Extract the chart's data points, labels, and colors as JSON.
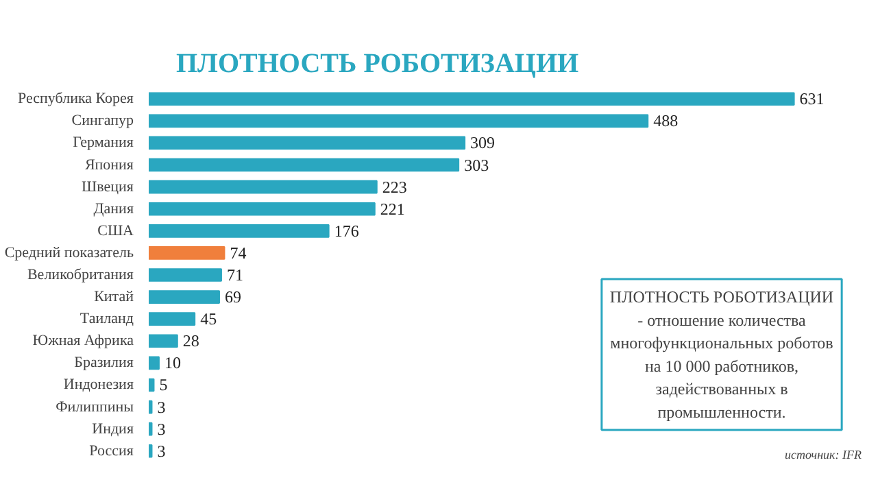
{
  "chart_data": {
    "type": "bar",
    "orientation": "horizontal",
    "title": "ПЛОТНОСТЬ РОБОТИЗАЦИИ",
    "categories": [
      "Республика Корея",
      "Сингапур",
      "Германия",
      "Япония",
      "Швеция",
      "Дания",
      "США",
      "Средний показатель",
      "Великобритания",
      "Китай",
      "Таиланд",
      "Южная Африка",
      "Бразилия",
      "Индонезия",
      "Филиппины",
      "Индия",
      "Россия"
    ],
    "values": [
      631,
      488,
      309,
      303,
      223,
      221,
      176,
      74,
      71,
      69,
      45,
      28,
      10,
      5,
      3,
      3,
      3
    ],
    "colors": [
      "#2aa7c0",
      "#2aa7c0",
      "#2aa7c0",
      "#2aa7c0",
      "#2aa7c0",
      "#2aa7c0",
      "#2aa7c0",
      "#f07f3c",
      "#2aa7c0",
      "#2aa7c0",
      "#2aa7c0",
      "#2aa7c0",
      "#2aa7c0",
      "#2aa7c0",
      "#2aa7c0",
      "#2aa7c0",
      "#2aa7c0"
    ],
    "data_labels": true,
    "annotations": [
      "ПЛОТНОСТЬ РОБОТИЗАЦИИ\n- отношение количества\nмногофункциональных роботов\nна 10 000 работников,\nзадействованных в\nпромышленности.",
      "источник: IFR"
    ]
  }
}
